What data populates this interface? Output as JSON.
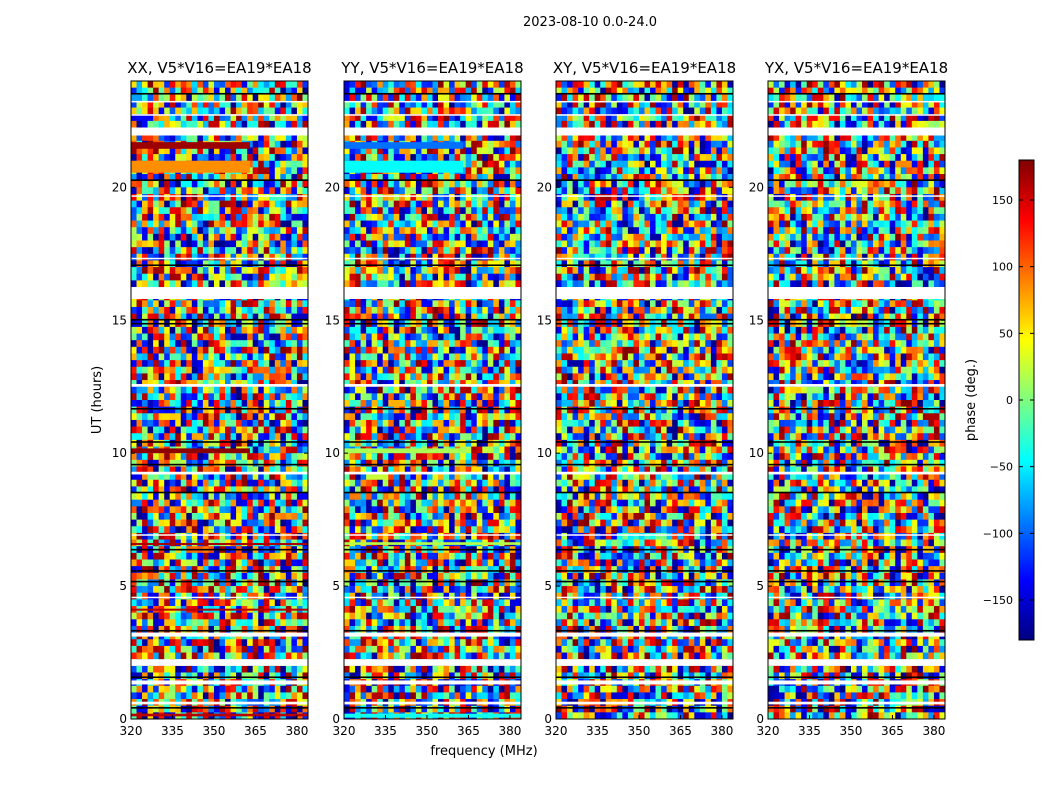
{
  "figure_title": "2023-08-10 0.0-24.0",
  "xlabel": "frequency (MHz)",
  "ylabel": "UT (hours)",
  "colorbar": {
    "label": "phase (deg.)",
    "range": [
      -180,
      180
    ],
    "ticks": [
      -150,
      -100,
      -50,
      0,
      50,
      100,
      150
    ],
    "colormap": "jet",
    "colors": [
      "#00007f",
      "#0000ff",
      "#007fff",
      "#00ffff",
      "#7fff7f",
      "#ffff00",
      "#ff7f00",
      "#ff0000",
      "#7f0000"
    ]
  },
  "chart_data": {
    "type": "heatmap",
    "title": "2023-08-10 0.0-24.0",
    "xlabel": "frequency (MHz)",
    "ylabel": "UT (hours)",
    "xlim": [
      320,
      384
    ],
    "ylim": [
      0,
      24
    ],
    "xticks": [
      320,
      335,
      350,
      365,
      380
    ],
    "yticks": [
      0,
      5,
      10,
      15,
      20
    ],
    "value_label": "phase (deg.)",
    "value_range": [
      -180,
      180
    ],
    "flagged_time_ranges": [
      [
        15.8,
        16.25
      ],
      [
        21.95,
        22.25
      ],
      [
        3.1,
        3.25
      ],
      [
        2.0,
        2.25
      ],
      [
        1.3,
        1.45
      ],
      [
        0.55,
        0.65
      ],
      [
        12.5,
        12.6
      ],
      [
        9.2,
        9.3
      ],
      [
        6.9,
        6.95
      ],
      [
        4.55,
        4.6
      ],
      [
        22.7,
        22.75
      ],
      [
        23.2,
        23.25
      ],
      [
        19.65,
        19.7
      ],
      [
        17.3,
        17.35
      ]
    ],
    "panels": [
      {
        "title": "XX, V5*V16=EA19*EA18",
        "coherent_bands": [
          {
            "t": [
              21.45,
              21.7
            ],
            "phase": 170,
            "f": [
              320,
              363
            ]
          },
          {
            "t": [
              20.55,
              21.0
            ],
            "phase": 85,
            "f": [
              320,
              363
            ]
          },
          {
            "t": [
              10.0,
              10.18
            ],
            "phase": 175,
            "f": [
              320,
              363
            ]
          },
          {
            "t": [
              6.55,
              6.62
            ],
            "phase": 165,
            "f": [
              320,
              384
            ]
          },
          {
            "t": [
              4.1,
              4.15
            ],
            "phase": 160,
            "f": [
              320,
              384
            ]
          },
          {
            "t": [
              0.1,
              0.2
            ],
            "phase": 160,
            "f": [
              320,
              384
            ]
          }
        ]
      },
      {
        "title": "YY, V5*V16=EA19*EA18",
        "coherent_bands": [
          {
            "t": [
              21.45,
              21.7
            ],
            "phase": -95,
            "f": [
              320,
              363
            ]
          },
          {
            "t": [
              20.55,
              21.0
            ],
            "phase": -45,
            "f": [
              320,
              363
            ]
          },
          {
            "t": [
              10.0,
              10.18
            ],
            "phase": 15,
            "f": [
              320,
              363
            ]
          },
          {
            "t": [
              6.55,
              6.65
            ],
            "phase": 20,
            "f": [
              320,
              384
            ]
          },
          {
            "t": [
              0.05,
              0.2
            ],
            "phase": -40,
            "f": [
              320,
              384
            ]
          }
        ]
      },
      {
        "title": "XY, V5*V16=EA19*EA18",
        "coherent_bands": []
      },
      {
        "title": "YX, V5*V16=EA19*EA18",
        "coherent_bands": []
      }
    ]
  }
}
